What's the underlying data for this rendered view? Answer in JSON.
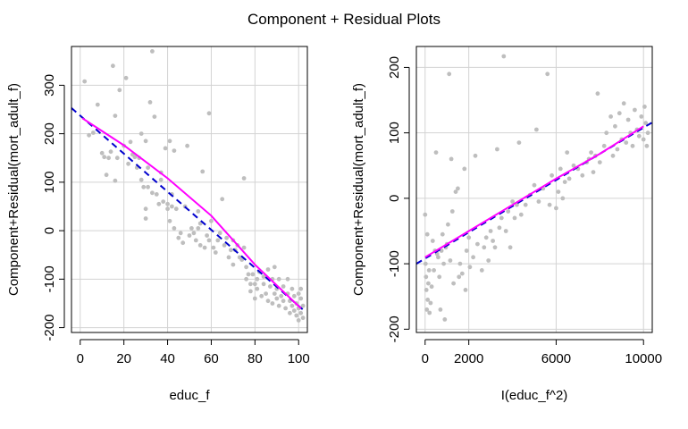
{
  "page_title": "Component + Residual Plots",
  "colors": {
    "points": "#bebebe",
    "grid": "#d3d3d3",
    "linear_fit": "#0000cd",
    "smooth": "#ff00ff",
    "axis": "#000000"
  },
  "chart_data": [
    {
      "type": "scatter",
      "xlabel": "educ_f",
      "ylabel": "Component+Residual(mort_adult_f)",
      "xticks": [
        0,
        20,
        40,
        60,
        80,
        100
      ],
      "yticks": [
        -200,
        -100,
        0,
        100,
        200,
        300
      ],
      "xlim": [
        -4,
        104
      ],
      "ylim": [
        -210,
        380
      ],
      "grid": true,
      "linear_fit": {
        "x": [
          -4,
          102
        ],
        "y": [
          253,
          -163
        ]
      },
      "smooth": [
        [
          1,
          232
        ],
        [
          20,
          176
        ],
        [
          40,
          108
        ],
        [
          60,
          31
        ],
        [
          80,
          -70
        ],
        [
          101,
          -160
        ]
      ],
      "points": [
        [
          2,
          308
        ],
        [
          4,
          197
        ],
        [
          6,
          202
        ],
        [
          8,
          260
        ],
        [
          10,
          160
        ],
        [
          11,
          152
        ],
        [
          12,
          115
        ],
        [
          13,
          150
        ],
        [
          14,
          163
        ],
        [
          15,
          340
        ],
        [
          16,
          237
        ],
        [
          16,
          103
        ],
        [
          17,
          150
        ],
        [
          18,
          290
        ],
        [
          20,
          175
        ],
        [
          21,
          315
        ],
        [
          22,
          138
        ],
        [
          23,
          183
        ],
        [
          24,
          157
        ],
        [
          25,
          152
        ],
        [
          26,
          130
        ],
        [
          27,
          150
        ],
        [
          28,
          200
        ],
        [
          28,
          105
        ],
        [
          29,
          90
        ],
        [
          30,
          185
        ],
        [
          30,
          45
        ],
        [
          30,
          25
        ],
        [
          31,
          130
        ],
        [
          31,
          90
        ],
        [
          32,
          265
        ],
        [
          33,
          370
        ],
        [
          33,
          78
        ],
        [
          34,
          235
        ],
        [
          35,
          75
        ],
        [
          36,
          55
        ],
        [
          37,
          120
        ],
        [
          37,
          105
        ],
        [
          38,
          60
        ],
        [
          39,
          170
        ],
        [
          40,
          55
        ],
        [
          40,
          45
        ],
        [
          41,
          185
        ],
        [
          41,
          20
        ],
        [
          42,
          75
        ],
        [
          42,
          50
        ],
        [
          43,
          165
        ],
        [
          43,
          5
        ],
        [
          44,
          45
        ],
        [
          45,
          -15
        ],
        [
          46,
          -5
        ],
        [
          47,
          -25
        ],
        [
          48,
          50
        ],
        [
          49,
          175
        ],
        [
          50,
          -10
        ],
        [
          51,
          5
        ],
        [
          52,
          -5
        ],
        [
          53,
          -20
        ],
        [
          54,
          5
        ],
        [
          54,
          40
        ],
        [
          55,
          15
        ],
        [
          55,
          -30
        ],
        [
          56,
          122
        ],
        [
          57,
          -35
        ],
        [
          58,
          -10
        ],
        [
          59,
          242
        ],
        [
          59,
          -20
        ],
        [
          60,
          20
        ],
        [
          61,
          -35
        ],
        [
          62,
          -45
        ],
        [
          63,
          -20
        ],
        [
          64,
          -5
        ],
        [
          65,
          65
        ],
        [
          66,
          -30
        ],
        [
          67,
          -15
        ],
        [
          68,
          -55
        ],
        [
          69,
          -40
        ],
        [
          70,
          -70
        ],
        [
          70,
          -20
        ],
        [
          71,
          -40
        ],
        [
          72,
          -30
        ],
        [
          73,
          -55
        ],
        [
          74,
          -60
        ],
        [
          75,
          108
        ],
        [
          75,
          -35
        ],
        [
          76,
          -75
        ],
        [
          76,
          -100
        ],
        [
          77,
          -90
        ],
        [
          78,
          -110
        ],
        [
          78,
          -125
        ],
        [
          79,
          -90
        ],
        [
          80,
          -110
        ],
        [
          80,
          -140
        ],
        [
          81,
          -100
        ],
        [
          81,
          -120
        ],
        [
          82,
          -85
        ],
        [
          83,
          -135
        ],
        [
          84,
          -110
        ],
        [
          84,
          -95
        ],
        [
          85,
          -130
        ],
        [
          86,
          -80
        ],
        [
          86,
          -145
        ],
        [
          87,
          -115
        ],
        [
          88,
          -100
        ],
        [
          88,
          -150
        ],
        [
          89,
          -130
        ],
        [
          89,
          -75
        ],
        [
          90,
          -120
        ],
        [
          90,
          -140
        ],
        [
          91,
          -100
        ],
        [
          91,
          -155
        ],
        [
          92,
          -135
        ],
        [
          93,
          -115
        ],
        [
          93,
          -145
        ],
        [
          94,
          -160
        ],
        [
          95,
          -130
        ],
        [
          95,
          -100
        ],
        [
          96,
          -145
        ],
        [
          96,
          -170
        ],
        [
          97,
          -120
        ],
        [
          97,
          -155
        ],
        [
          98,
          -135
        ],
        [
          98,
          -165
        ],
        [
          99,
          -150
        ],
        [
          99,
          -175
        ],
        [
          100,
          -130
        ],
        [
          100,
          -160
        ],
        [
          100,
          -185
        ],
        [
          101,
          -140
        ],
        [
          101,
          -170
        ],
        [
          101,
          -120
        ],
        [
          102,
          -155
        ],
        [
          102,
          -180
        ]
      ]
    },
    {
      "type": "scatter",
      "xlabel": "I(educ_f^2)",
      "ylabel": "Component+Residual(mort_adult_f)",
      "xticks": [
        0,
        2000,
        6000,
        10000
      ],
      "yticks": [
        -200,
        -100,
        0,
        100,
        200
      ],
      "xlim": [
        -400,
        10400
      ],
      "ylim": [
        -205,
        232
      ],
      "grid": true,
      "linear_fit": {
        "x": [
          -400,
          10400
        ],
        "y": [
          -100,
          116
        ]
      },
      "smooth": [
        [
          0,
          -90
        ],
        [
          2000,
          -50
        ],
        [
          4000,
          -10
        ],
        [
          6000,
          30
        ],
        [
          8000,
          68
        ],
        [
          10000,
          110
        ]
      ],
      "points": [
        [
          0,
          -25
        ],
        [
          20,
          -100
        ],
        [
          40,
          -120
        ],
        [
          60,
          -140
        ],
        [
          80,
          -170
        ],
        [
          100,
          -55
        ],
        [
          120,
          -155
        ],
        [
          150,
          -130
        ],
        [
          180,
          -110
        ],
        [
          200,
          -175
        ],
        [
          250,
          -160
        ],
        [
          300,
          -135
        ],
        [
          350,
          -65
        ],
        [
          400,
          -110
        ],
        [
          450,
          -80
        ],
        [
          500,
          70
        ],
        [
          550,
          -85
        ],
        [
          600,
          -90
        ],
        [
          650,
          -120
        ],
        [
          700,
          -170
        ],
        [
          750,
          -80
        ],
        [
          800,
          -55
        ],
        [
          850,
          -100
        ],
        [
          900,
          -185
        ],
        [
          950,
          -75
        ],
        [
          1000,
          -70
        ],
        [
          1050,
          -40
        ],
        [
          1100,
          190
        ],
        [
          1150,
          -95
        ],
        [
          1200,
          60
        ],
        [
          1250,
          -20
        ],
        [
          1300,
          -130
        ],
        [
          1400,
          10
        ],
        [
          1500,
          15
        ],
        [
          1550,
          -120
        ],
        [
          1600,
          -100
        ],
        [
          1700,
          -115
        ],
        [
          1800,
          45
        ],
        [
          1850,
          -140
        ],
        [
          1900,
          -80
        ],
        [
          2000,
          -60
        ],
        [
          2050,
          -105
        ],
        [
          2200,
          -90
        ],
        [
          2300,
          65
        ],
        [
          2400,
          -70
        ],
        [
          2600,
          -110
        ],
        [
          2700,
          -75
        ],
        [
          2800,
          -60
        ],
        [
          2900,
          -95
        ],
        [
          3000,
          -50
        ],
        [
          3100,
          -65
        ],
        [
          3200,
          -75
        ],
        [
          3300,
          75
        ],
        [
          3400,
          -45
        ],
        [
          3500,
          -30
        ],
        [
          3600,
          217
        ],
        [
          3700,
          -50
        ],
        [
          3800,
          -20
        ],
        [
          3900,
          -75
        ],
        [
          4000,
          -5
        ],
        [
          4100,
          -30
        ],
        [
          4200,
          -10
        ],
        [
          4300,
          85
        ],
        [
          4400,
          -25
        ],
        [
          4600,
          -10
        ],
        [
          4800,
          5
        ],
        [
          5000,
          20
        ],
        [
          5100,
          105
        ],
        [
          5200,
          -5
        ],
        [
          5400,
          15
        ],
        [
          5600,
          190
        ],
        [
          5700,
          -10
        ],
        [
          5800,
          35
        ],
        [
          6000,
          -15
        ],
        [
          6100,
          10
        ],
        [
          6200,
          45
        ],
        [
          6300,
          0
        ],
        [
          6400,
          25
        ],
        [
          6500,
          70
        ],
        [
          6600,
          30
        ],
        [
          6800,
          50
        ],
        [
          7000,
          45
        ],
        [
          7200,
          35
        ],
        [
          7400,
          55
        ],
        [
          7500,
          60
        ],
        [
          7600,
          70
        ],
        [
          7700,
          40
        ],
        [
          7800,
          65
        ],
        [
          7900,
          160
        ],
        [
          8000,
          55
        ],
        [
          8200,
          80
        ],
        [
          8300,
          100
        ],
        [
          8500,
          125
        ],
        [
          8600,
          65
        ],
        [
          8700,
          110
        ],
        [
          8800,
          75
        ],
        [
          8900,
          130
        ],
        [
          9000,
          90
        ],
        [
          9100,
          145
        ],
        [
          9200,
          85
        ],
        [
          9300,
          120
        ],
        [
          9400,
          100
        ],
        [
          9500,
          80
        ],
        [
          9600,
          135
        ],
        [
          9700,
          105
        ],
        [
          9800,
          95
        ],
        [
          9900,
          125
        ],
        [
          10000,
          90
        ],
        [
          10050,
          140
        ],
        [
          10100,
          115
        ],
        [
          10150,
          80
        ],
        [
          10200,
          100
        ]
      ]
    }
  ]
}
